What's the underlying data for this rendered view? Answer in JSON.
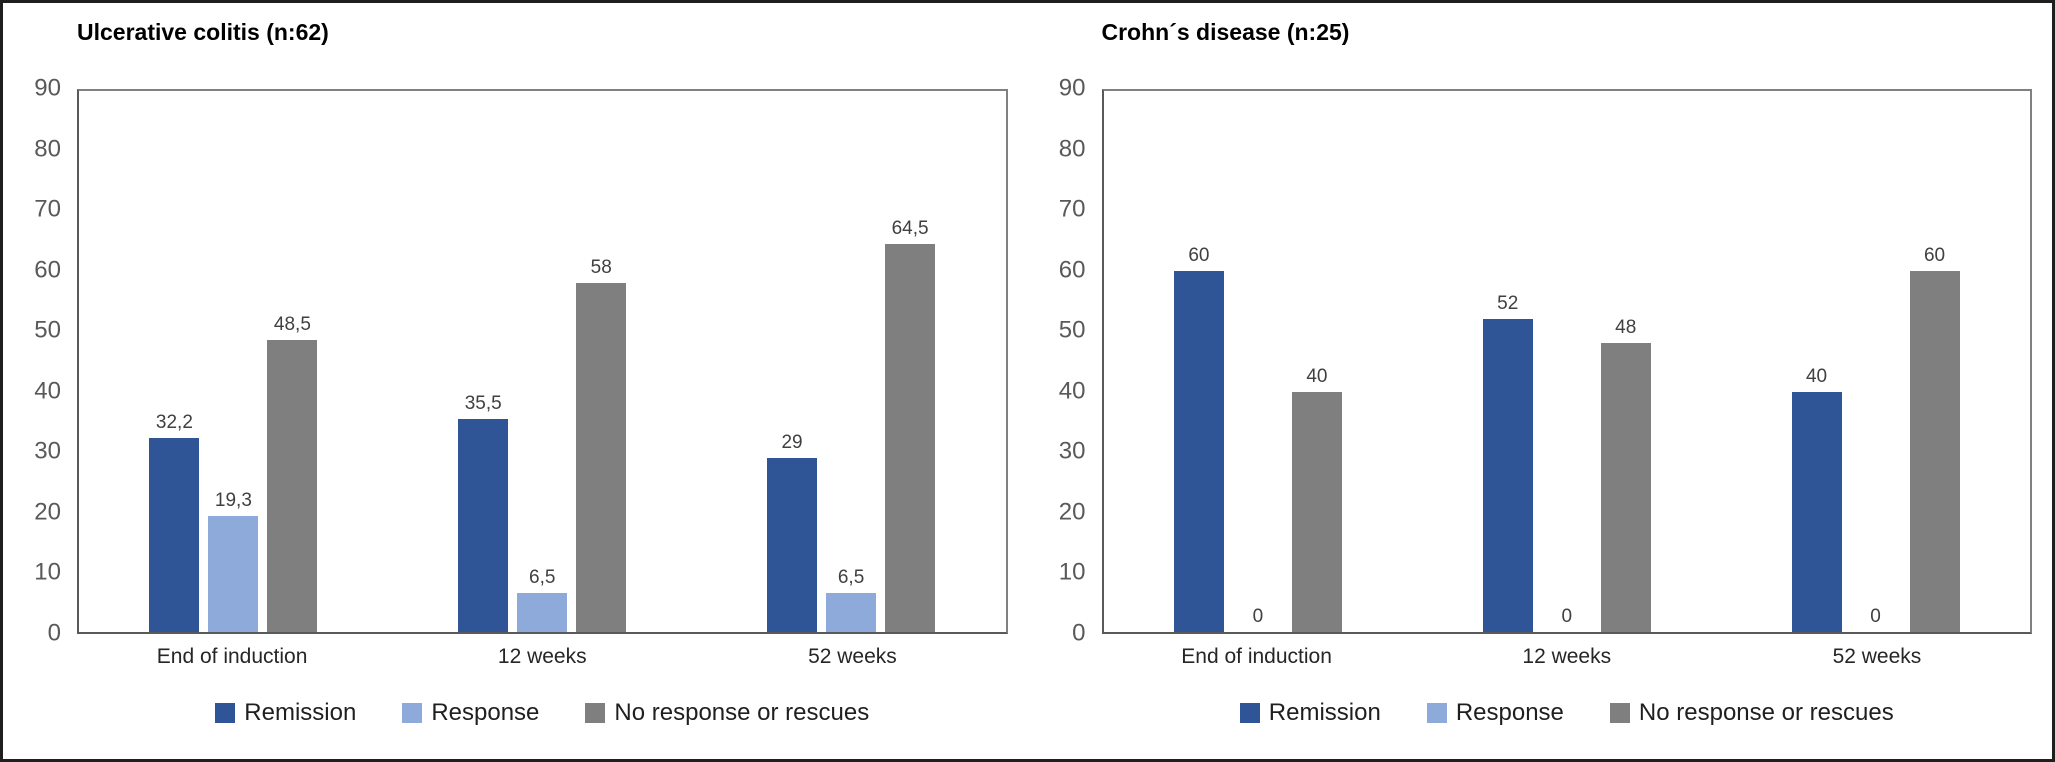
{
  "figure": {
    "frame_border_color": "#1f1f1f",
    "background_color": "#ffffff",
    "axis_text_color": "#595959",
    "data_label_color": "#404040",
    "plot_border_color": "#808080"
  },
  "chart_data": [
    {
      "type": "bar",
      "title": "Ulcerative colitis (n:62)",
      "categories": [
        "End of induction",
        "12 weeks",
        "52 weeks"
      ],
      "series": [
        {
          "name": "Remission",
          "color": "#2F5597",
          "values": [
            32.2,
            35.5,
            29
          ],
          "value_labels": [
            "32,2",
            "35,5",
            "29"
          ]
        },
        {
          "name": "Response",
          "color": "#8EAADB",
          "values": [
            19.3,
            6.5,
            6.5
          ],
          "value_labels": [
            "19,3",
            "6,5",
            "6,5"
          ]
        },
        {
          "name": "No response or rescues",
          "color": "#7F7F7F",
          "values": [
            48.5,
            58,
            64.5
          ],
          "value_labels": [
            "48,5",
            "58",
            "64,5"
          ]
        }
      ],
      "ylim": [
        0,
        90
      ],
      "yticks": [
        0,
        10,
        20,
        30,
        40,
        50,
        60,
        70,
        80,
        90
      ],
      "grid": false,
      "legend_position": "bottom"
    },
    {
      "type": "bar",
      "title": "Crohn´s disease (n:25)",
      "categories": [
        "End of induction",
        "12 weeks",
        "52 weeks"
      ],
      "series": [
        {
          "name": "Remission",
          "color": "#2F5597",
          "values": [
            60,
            52,
            40
          ],
          "value_labels": [
            "60",
            "52",
            "40"
          ]
        },
        {
          "name": "Response",
          "color": "#8EAADB",
          "values": [
            0,
            0,
            0
          ],
          "value_labels": [
            "0",
            "0",
            "0"
          ]
        },
        {
          "name": "No response or rescues",
          "color": "#7F7F7F",
          "values": [
            40,
            48,
            60
          ],
          "value_labels": [
            "40",
            "48",
            "60"
          ]
        }
      ],
      "ylim": [
        0,
        90
      ],
      "yticks": [
        0,
        10,
        20,
        30,
        40,
        50,
        60,
        70,
        80,
        90
      ],
      "grid": false,
      "legend_position": "bottom"
    }
  ]
}
